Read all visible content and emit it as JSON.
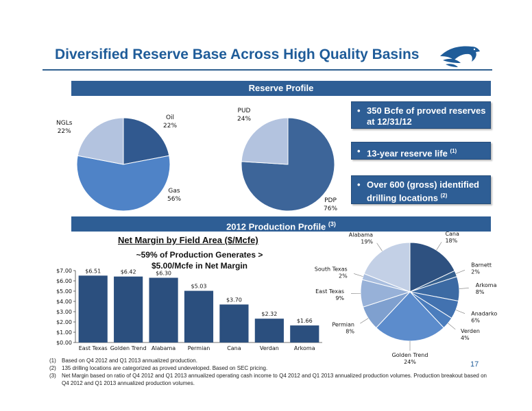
{
  "header": {
    "title": "Diversified Reserve Base Across High Quality Basins"
  },
  "bands": {
    "reserve_profile": "Reserve Profile",
    "production_profile": "2012 Production Profile",
    "production_profile_ref": "(3)"
  },
  "callouts": [
    {
      "bullet": "•",
      "text": "350 Bcfe of proved reserves at 12/31/12",
      "ref": ""
    },
    {
      "bullet": "•",
      "text": "13-year reserve life",
      "ref": "(1)"
    },
    {
      "bullet": "•",
      "text": "Over 600 (gross) identified drilling locations",
      "ref": "(2)"
    }
  ],
  "net_margin": {
    "title": "Net Margin by Field Area ($/Mcfe)",
    "subtitle": "~59% of Production Generates > $5.00/Mcfe in Net Margin"
  },
  "footnotes": [
    {
      "num": "(1)",
      "text": "Based on Q4 2012 and Q1 2013 annualized production."
    },
    {
      "num": "(2)",
      "text": "135 drilling locations are categorized as proved undeveloped. Based on SEC pricing."
    },
    {
      "num": "(3)",
      "text": "Net Margin based on ratio of Q4 2012 and Q1 2013 annualized operating cash  income to Q4 2012 and Q1 2013 annualized production volumes. Production breakout based on Q4 2012 and Q1 2013 annualized production volumes."
    }
  ],
  "page_number": "17",
  "colors": {
    "band": "#2e5e95",
    "title": "#1f5c99",
    "bar": "#2b4f7e"
  },
  "chart_data": [
    {
      "type": "pie",
      "slices": [
        {
          "label": "Oil",
          "value": 22,
          "display": "22%",
          "color": "#31598f"
        },
        {
          "label": "Gas",
          "value": 56,
          "display": "56%",
          "color": "#4f83c7"
        },
        {
          "label": "NGLs",
          "value": 22,
          "display": "22%",
          "color": "#b3c3df"
        }
      ]
    },
    {
      "type": "pie",
      "slices": [
        {
          "label": "PDP",
          "value": 76,
          "display": "76%",
          "color": "#3d6599"
        },
        {
          "label": "PUD",
          "value": 24,
          "display": "24%",
          "color": "#b3c3df"
        }
      ]
    },
    {
      "type": "bar",
      "title": "Net Margin by Field Area ($/Mcfe)",
      "categories": [
        "East Texas",
        "Golden Trend",
        "Alabama",
        "Permian",
        "Cana",
        "Verdan",
        "Arkoma"
      ],
      "values": [
        6.51,
        6.42,
        6.3,
        5.03,
        3.7,
        2.32,
        1.66
      ],
      "value_labels": [
        "$6.51",
        "$6.42",
        "$6.30",
        "$5.03",
        "$3.70",
        "$2.32",
        "$1.66"
      ],
      "ylim": [
        0,
        7
      ],
      "yticks": [
        "$0.00",
        "$1.00",
        "$2.00",
        "$3.00",
        "$4.00",
        "$5.00",
        "$6.00",
        "$7.00"
      ]
    },
    {
      "type": "pie",
      "slices": [
        {
          "label": "Cana",
          "value": 18,
          "display": "18%",
          "color": "#2e5180"
        },
        {
          "label": "Barnett",
          "value": 2,
          "display": "2%",
          "color": "#36608f"
        },
        {
          "label": "Arkoma",
          "value": 8,
          "display": "8%",
          "color": "#3c6aa3"
        },
        {
          "label": "Anadarko",
          "value": 6,
          "display": "6%",
          "color": "#4272b0"
        },
        {
          "label": "Verden",
          "value": 4,
          "display": "4%",
          "color": "#4b7dbd"
        },
        {
          "label": "Golden Trend",
          "value": 24,
          "display": "24%",
          "color": "#5c8ccc"
        },
        {
          "label": "Permian",
          "value": 8,
          "display": "8%",
          "color": "#7fa0cf"
        },
        {
          "label": "East Texas",
          "value": 9,
          "display": "9%",
          "color": "#97b1d8"
        },
        {
          "label": "South Texas",
          "value": 2,
          "display": "2%",
          "color": "#a9bedf"
        },
        {
          "label": "Alabama",
          "value": 19,
          "display": "19%",
          "color": "#c3d0e6"
        }
      ]
    }
  ]
}
